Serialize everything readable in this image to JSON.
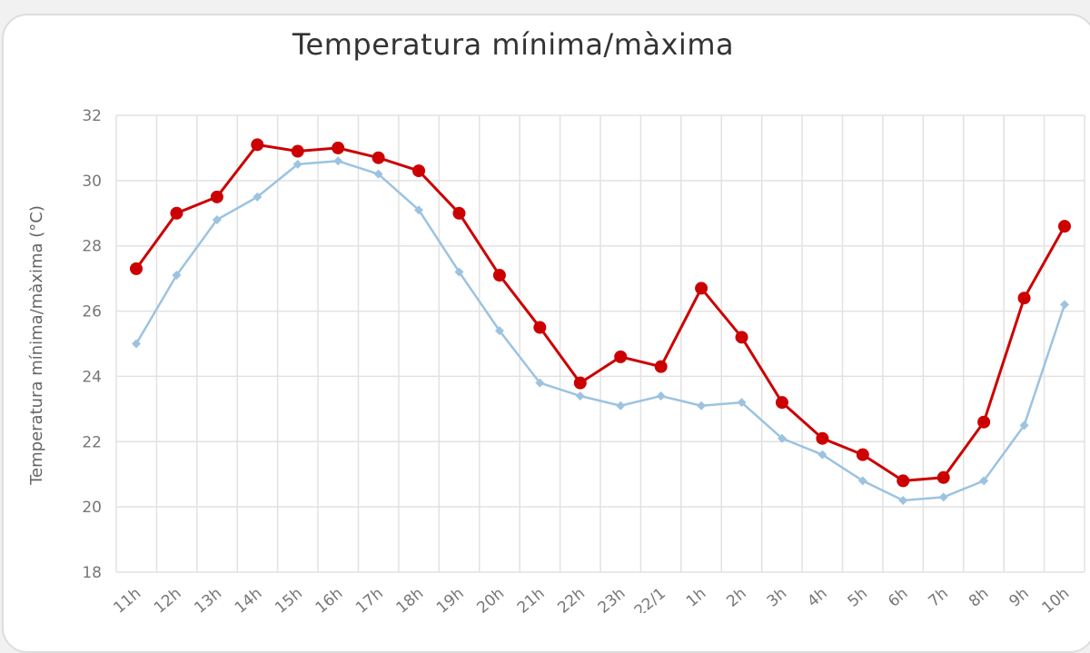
{
  "chart_data": {
    "type": "line",
    "title": "Temperatura mínima/màxima",
    "xlabel": "",
    "ylabel": "Temperatura mínima/màxima (°C)",
    "ylim": [
      18,
      32
    ],
    "yticks": [
      18,
      20,
      22,
      24,
      26,
      28,
      30,
      32
    ],
    "grid": true,
    "legend": "none",
    "categories": [
      "11h",
      "12h",
      "13h",
      "14h",
      "15h",
      "16h",
      "17h",
      "18h",
      "19h",
      "20h",
      "21h",
      "22h",
      "23h",
      "22/1",
      "1h",
      "2h",
      "3h",
      "4h",
      "5h",
      "6h",
      "7h",
      "8h",
      "9h",
      "10h"
    ],
    "series": [
      {
        "color": "#cc0000",
        "marker": "circle",
        "values": [
          27.3,
          29.0,
          29.5,
          31.1,
          30.9,
          31.0,
          30.7,
          30.3,
          29.0,
          27.1,
          25.5,
          23.8,
          24.6,
          24.3,
          26.7,
          25.2,
          23.2,
          22.1,
          21.6,
          20.8,
          20.9,
          22.6,
          26.4,
          28.6
        ]
      },
      {
        "color": "#9cc3e0",
        "marker": "diamond",
        "values": [
          25.0,
          27.1,
          28.8,
          29.5,
          30.5,
          30.6,
          30.2,
          29.1,
          27.2,
          25.4,
          23.8,
          23.4,
          23.1,
          23.4,
          23.1,
          23.2,
          22.1,
          21.6,
          20.8,
          20.2,
          20.3,
          20.8,
          22.5,
          26.2
        ]
      }
    ]
  }
}
